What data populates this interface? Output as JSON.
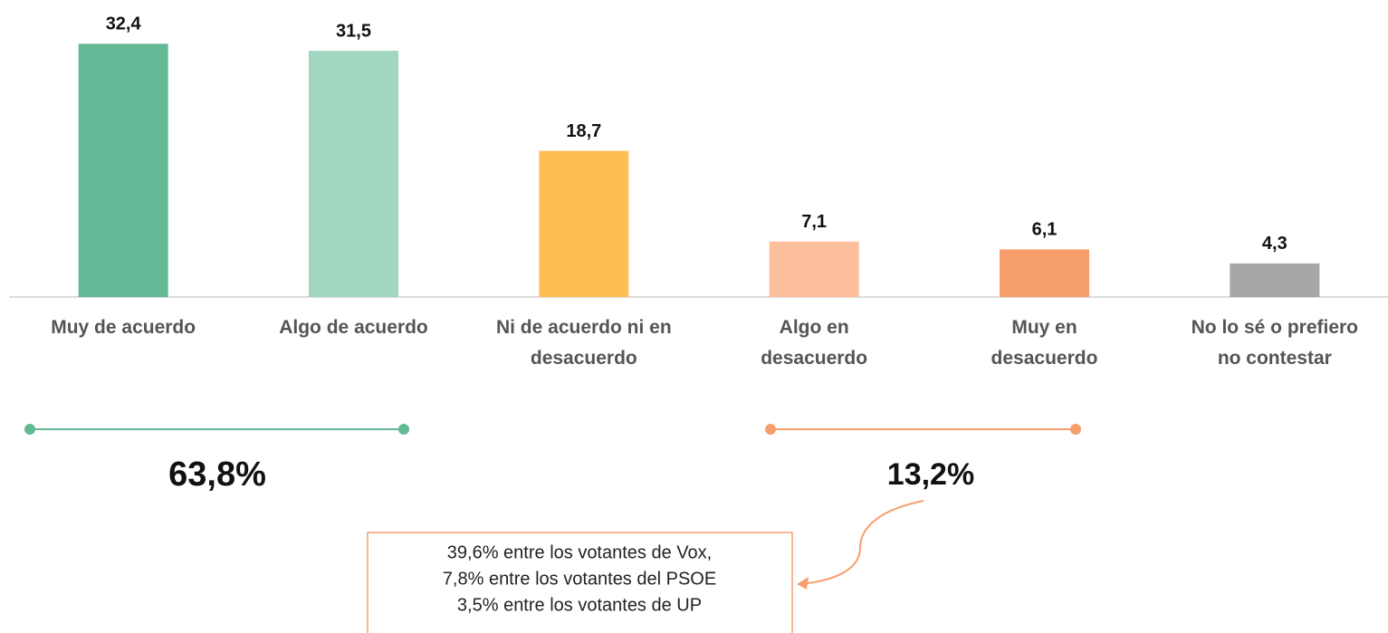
{
  "chart_data": {
    "type": "bar",
    "categories": [
      "Muy de acuerdo",
      "Algo de acuerdo",
      "Ni de acuerdo ni en\ndesacuerdo",
      "Algo en\ndesacuerdo",
      "Muy en\ndesacuerdo",
      "No lo sé o prefiero\nno contestar"
    ],
    "values": [
      32.4,
      31.5,
      18.7,
      7.1,
      6.1,
      4.3
    ],
    "value_labels": [
      "32,4",
      "31,5",
      "18,7",
      "7,1",
      "6,1",
      "4,3"
    ],
    "colors": [
      "#63b995",
      "#a1d6c0",
      "#fdbe54",
      "#fbbf9c",
      "#f79e6d",
      "#a6a6a6"
    ],
    "ylim": [
      0,
      38
    ],
    "annotations": {
      "agree_total": "63,8%",
      "disagree_total": "13,2%",
      "note": [
        "39,6% entre los votantes de Vox,",
        "7,8% entre los votantes del PSOE",
        "3,5% entre los votantes de UP"
      ]
    }
  }
}
